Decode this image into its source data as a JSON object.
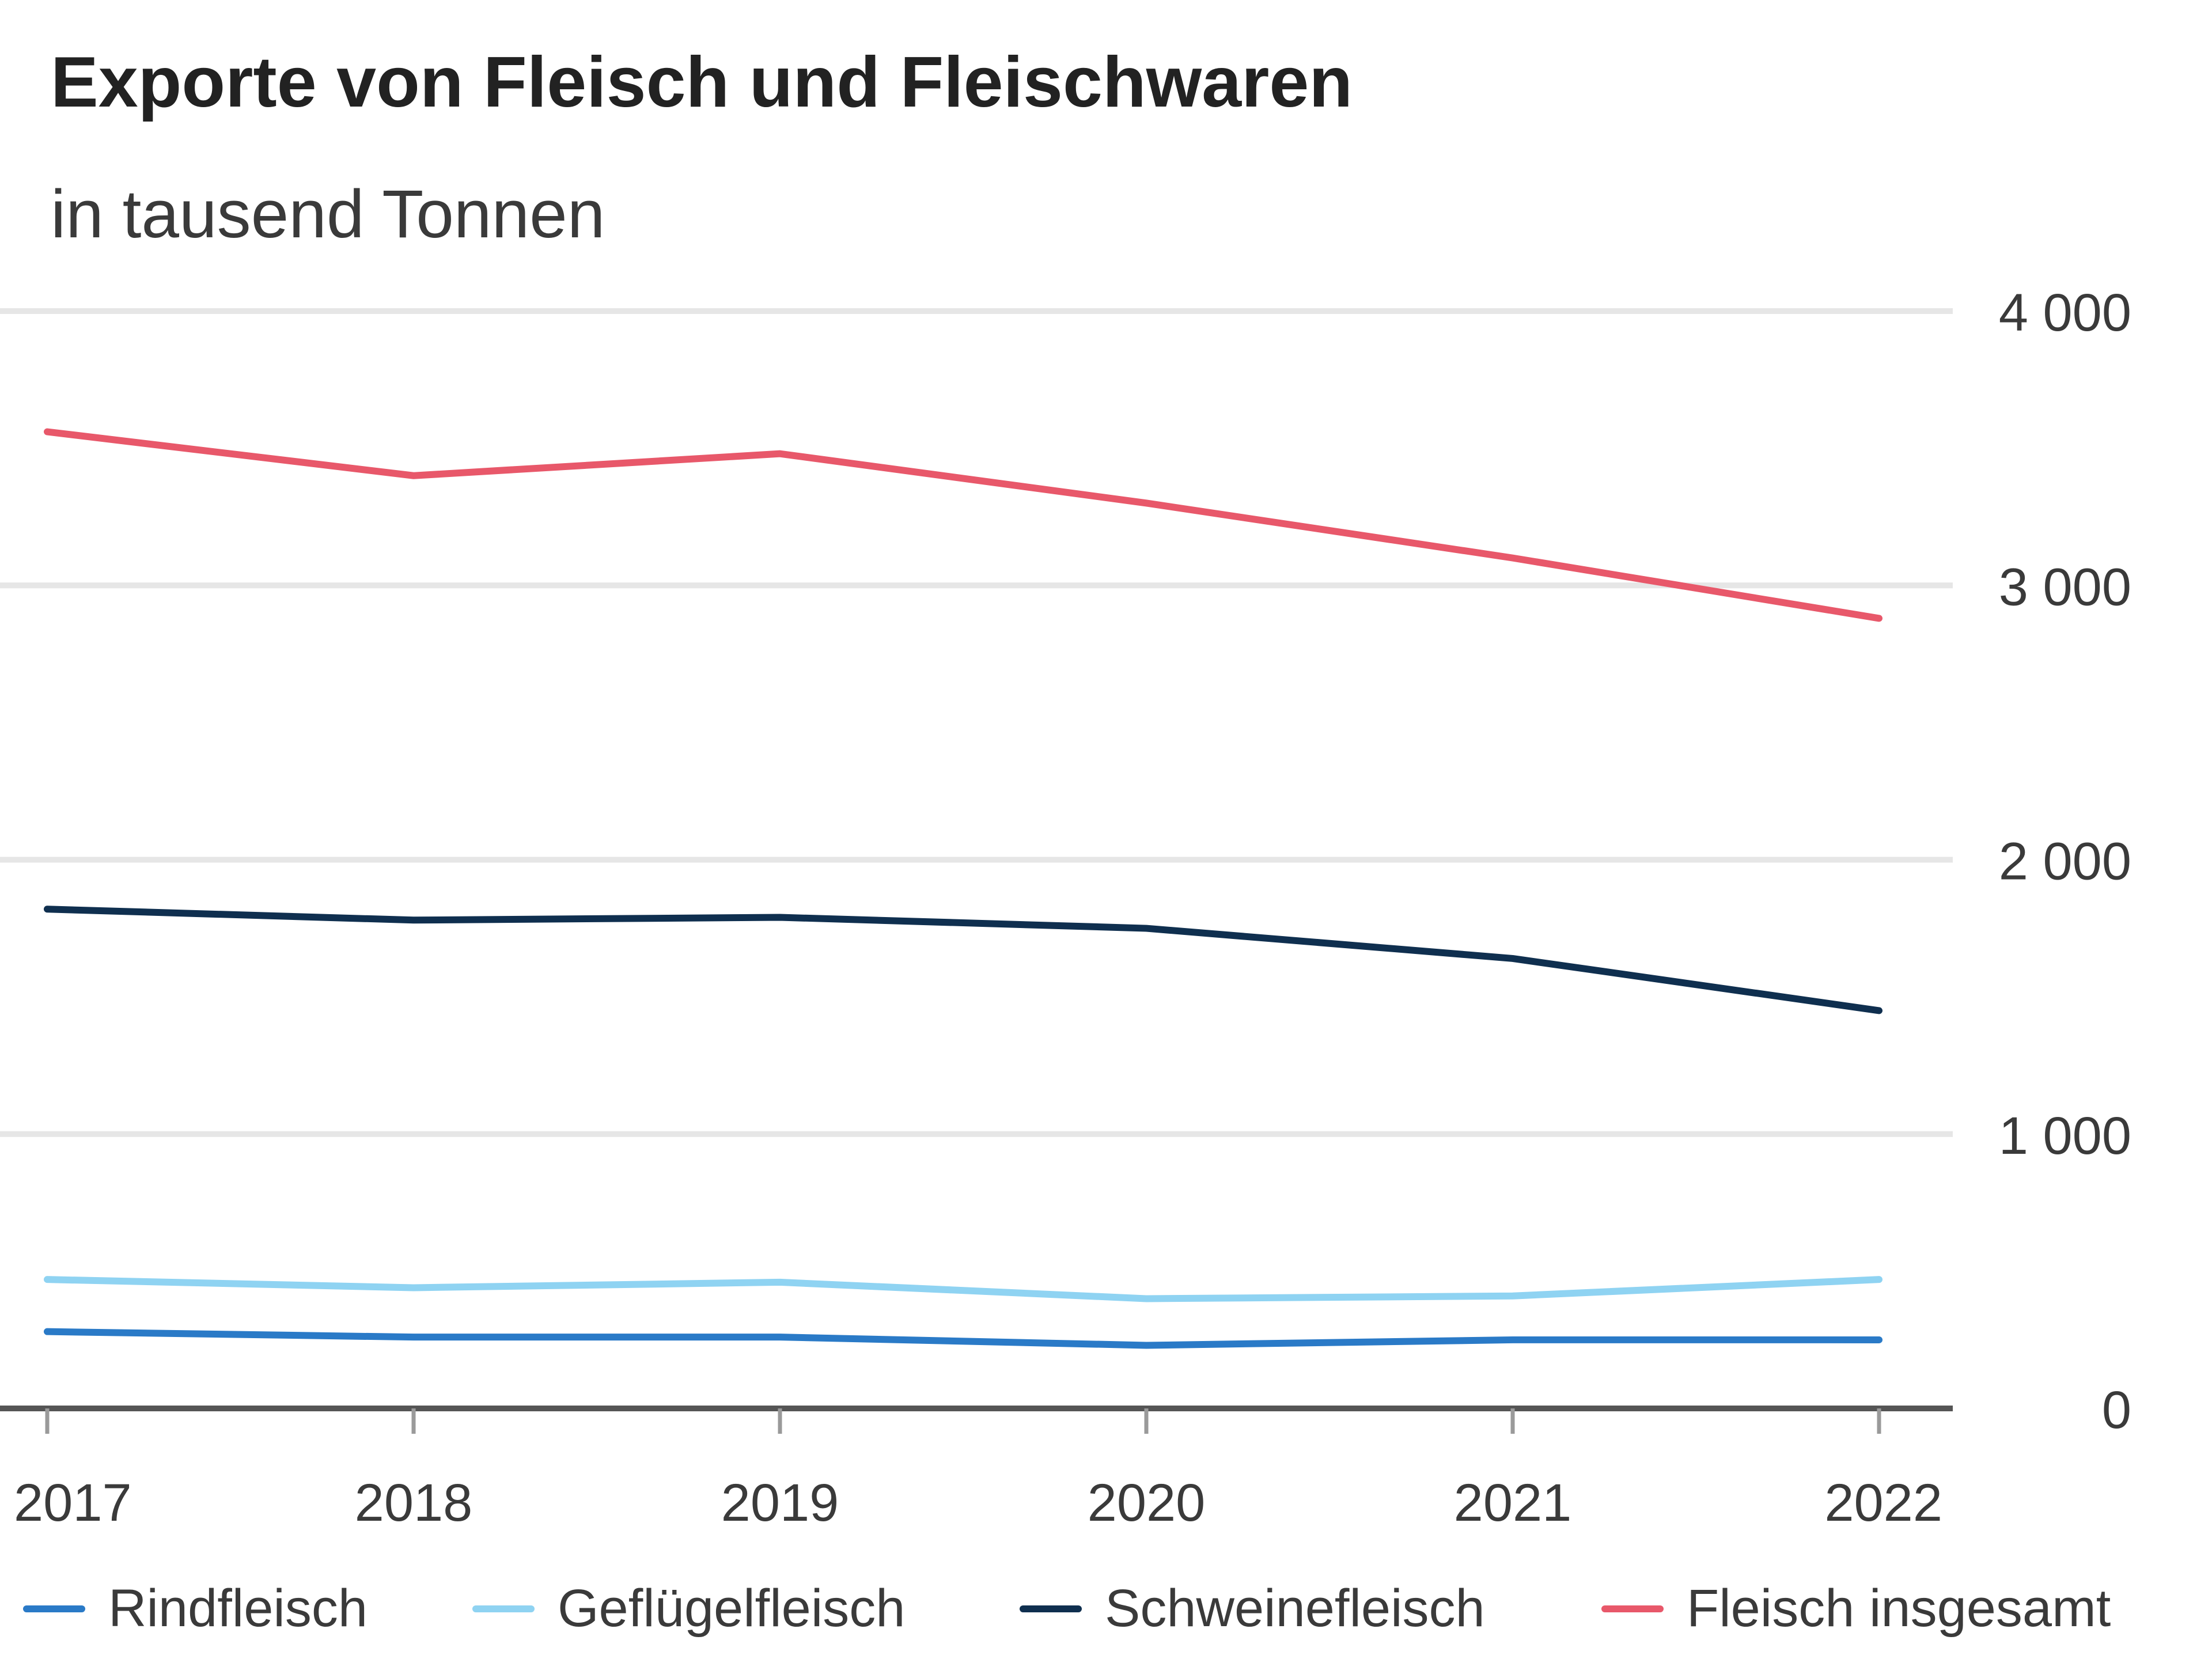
{
  "chart_data": {
    "type": "line",
    "title": "Exporte von Fleisch und Fleischwaren",
    "subtitle": "in tausend Tonnen",
    "xlabel": "",
    "ylabel": "in tausend Tonnen",
    "x": [
      "2017",
      "2018",
      "2019",
      "2020",
      "2021",
      "2022"
    ],
    "ylim": [
      0,
      4000
    ],
    "yticks": [
      0,
      1000,
      2000,
      3000,
      4000
    ],
    "ytick_labels": [
      "0",
      "1 000",
      "2 000",
      "3 000",
      "4 000"
    ],
    "grid": true,
    "legend_position": "bottom",
    "series": [
      {
        "name": "Rindfleisch",
        "color": "#2a7ac7",
        "values": [
          280,
          260,
          260,
          230,
          250,
          250
        ]
      },
      {
        "name": "Geflügelfleisch",
        "color": "#8fd3f2",
        "values": [
          470,
          440,
          460,
          400,
          410,
          470
        ]
      },
      {
        "name": "Schweinefleisch",
        "color": "#0f2f4f",
        "values": [
          1820,
          1780,
          1790,
          1750,
          1640,
          1450
        ]
      },
      {
        "name": "Fleisch insgesamt",
        "color": "#e8586a",
        "values": [
          3560,
          3400,
          3480,
          3300,
          3100,
          2880
        ]
      }
    ]
  }
}
